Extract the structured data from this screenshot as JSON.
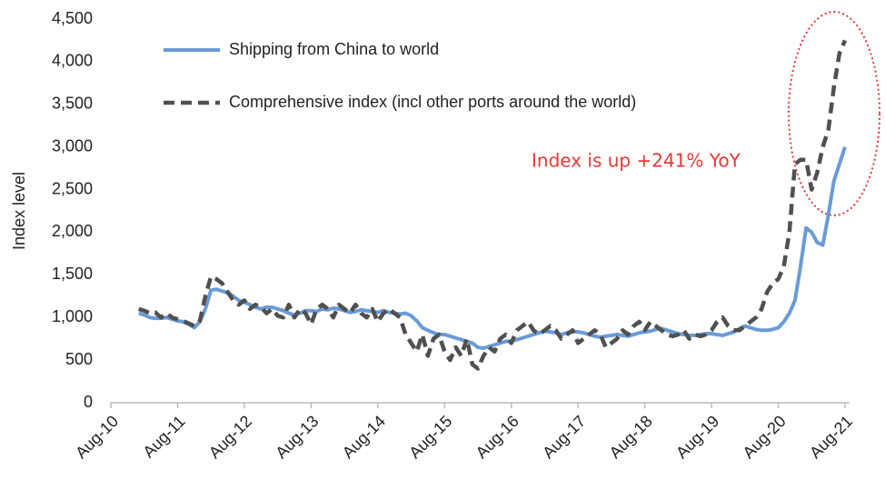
{
  "chart_data": {
    "type": "line",
    "ylabel": "Index level",
    "annotation": "Index is up +241% YoY",
    "categories": [
      "Aug-10",
      null,
      null,
      null,
      null,
      null,
      null,
      null,
      null,
      null,
      null,
      null,
      "Aug-11",
      null,
      null,
      null,
      null,
      null,
      null,
      null,
      null,
      null,
      null,
      null,
      "Aug-12",
      null,
      null,
      null,
      null,
      null,
      null,
      null,
      null,
      null,
      null,
      null,
      "Aug-13",
      null,
      null,
      null,
      null,
      null,
      null,
      null,
      null,
      null,
      null,
      null,
      "Aug-14",
      null,
      null,
      null,
      null,
      null,
      null,
      null,
      null,
      null,
      null,
      null,
      "Aug-15",
      null,
      null,
      null,
      null,
      null,
      null,
      null,
      null,
      null,
      null,
      null,
      "Aug-16",
      null,
      null,
      null,
      null,
      null,
      null,
      null,
      null,
      null,
      null,
      null,
      "Aug-17",
      null,
      null,
      null,
      null,
      null,
      null,
      null,
      null,
      null,
      null,
      null,
      "Aug-18",
      null,
      null,
      null,
      null,
      null,
      null,
      null,
      null,
      null,
      null,
      null,
      "Aug-19",
      null,
      null,
      null,
      null,
      null,
      null,
      null,
      null,
      null,
      null,
      null,
      "Aug-20",
      null,
      null,
      null,
      null,
      null,
      null,
      null,
      null,
      null,
      null,
      null,
      "Aug-21"
    ],
    "series": [
      {
        "name": "Shipping from China to world",
        "color": "#6a9bd8",
        "dash": false,
        "values": [
          null,
          null,
          null,
          null,
          null,
          1050,
          1030,
          1000,
          990,
          990,
          1000,
          980,
          960,
          950,
          920,
          880,
          950,
          1100,
          1320,
          1330,
          1310,
          1290,
          1250,
          1200,
          1180,
          1150,
          1120,
          1100,
          1120,
          1120,
          1100,
          1080,
          1050,
          1030,
          1050,
          1080,
          1080,
          1070,
          1100,
          1090,
          1110,
          1100,
          1080,
          1060,
          1070,
          1090,
          1080,
          1070,
          1060,
          1080,
          1060,
          1050,
          1040,
          1050,
          1020,
          960,
          880,
          850,
          820,
          800,
          800,
          780,
          760,
          740,
          720,
          700,
          650,
          640,
          660,
          680,
          700,
          720,
          720,
          740,
          760,
          780,
          800,
          820,
          840,
          830,
          820,
          800,
          820,
          840,
          830,
          820,
          800,
          780,
          770,
          780,
          790,
          800,
          790,
          780,
          800,
          820,
          830,
          840,
          860,
          870,
          850,
          830,
          810,
          800,
          790,
          790,
          800,
          810,
          810,
          800,
          790,
          810,
          830,
          870,
          900,
          880,
          860,
          850,
          850,
          860,
          880,
          950,
          1050,
          1200,
          1600,
          2050,
          2000,
          1880,
          1850,
          2200,
          2600,
          2800,
          3000
        ]
      },
      {
        "name": "Comprehensive index (incl other ports around the world)",
        "color": "#505050",
        "dash": true,
        "values": [
          null,
          null,
          null,
          null,
          null,
          1100,
          1080,
          1050,
          1060,
          1000,
          1050,
          1000,
          980,
          960,
          930,
          900,
          960,
          1250,
          1480,
          1450,
          1400,
          1300,
          1200,
          1150,
          1200,
          1100,
          1150,
          1120,
          1050,
          1100,
          1020,
          1000,
          1150,
          1000,
          1100,
          1050,
          920,
          1100,
          1150,
          1100,
          1000,
          1150,
          1100,
          1050,
          1150,
          1050,
          1000,
          1100,
          950,
          1050,
          1100,
          1050,
          1000,
          800,
          700,
          600,
          800,
          550,
          750,
          800,
          600,
          500,
          650,
          550,
          750,
          450,
          400,
          550,
          650,
          600,
          750,
          800,
          700,
          850,
          900,
          950,
          850,
          800,
          850,
          900,
          850,
          750,
          800,
          850,
          700,
          750,
          800,
          850,
          800,
          650,
          700,
          750,
          850,
          800,
          900,
          950,
          850,
          950,
          900,
          850,
          800,
          780,
          800,
          850,
          750,
          800,
          780,
          800,
          850,
          950,
          1000,
          900,
          850,
          850,
          900,
          950,
          1000,
          1100,
          1300,
          1400,
          1450,
          1600,
          2000,
          2800,
          2850,
          2850,
          2500,
          2700,
          3000,
          3200,
          3700,
          4100,
          4250
        ]
      }
    ],
    "ylim": [
      0,
      4500
    ],
    "yticks": [
      0,
      500,
      {
        "value": 1000,
        "label": "1,000"
      },
      {
        "value": 1500,
        "label": "1,500"
      },
      {
        "value": 2000,
        "label": "2,000"
      },
      {
        "value": 2500,
        "label": "2,500"
      },
      {
        "value": 3000,
        "label": "3,000"
      },
      {
        "value": 3500,
        "label": "3,500"
      },
      {
        "value": 4000,
        "label": "4,000"
      },
      {
        "value": 4500,
        "label": "4,500"
      }
    ],
    "grid": false,
    "legend": "top-left"
  }
}
